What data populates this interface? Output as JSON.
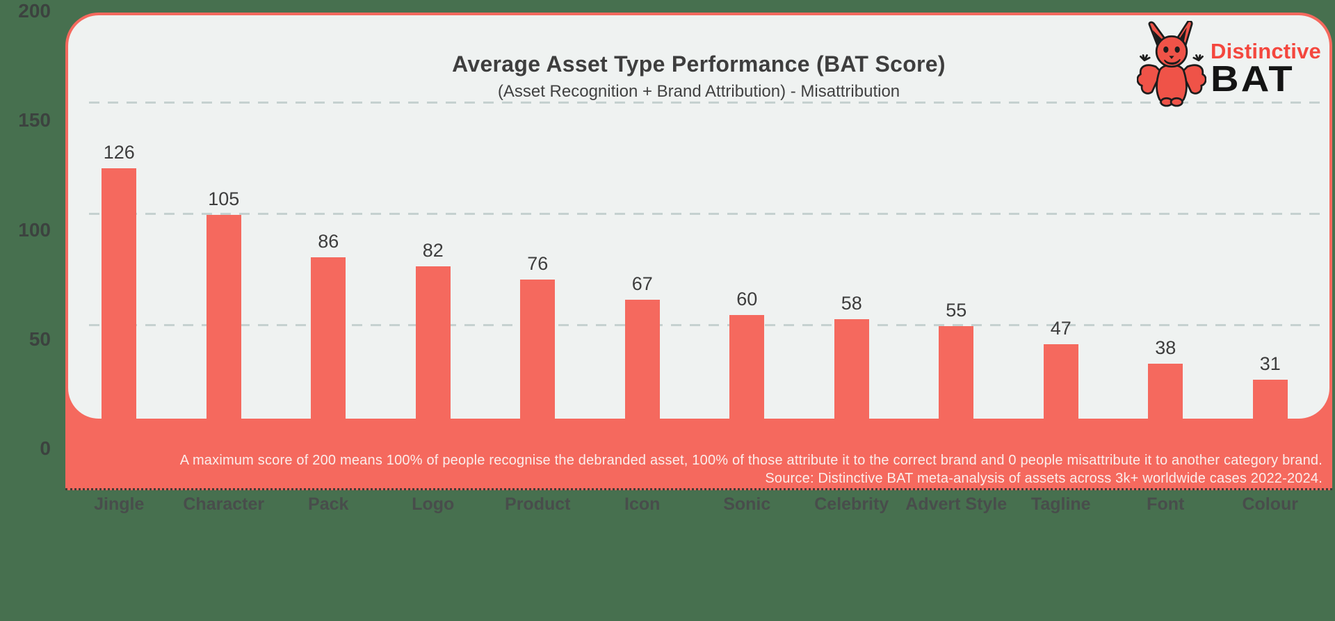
{
  "header": {
    "title": "Average Asset Type Performance (BAT Score)",
    "subtitle": "(Asset Recognition + Brand Attribution) - Misattribution"
  },
  "logo": {
    "brand_top": "Distinctive",
    "brand_bottom": "BAT",
    "mascot": "red-bat-mascot-icon"
  },
  "footer": {
    "line1": "A maximum score of 200 means 100% of people recognise the debranded asset, 100% of those attribute it to the correct brand and 0 people misattribute it to another category brand.",
    "line2": "Source: Distinctive BAT meta-analysis of assets across 3k+ worldwide cases 2022-2024."
  },
  "chart_data": {
    "type": "bar",
    "title": "Average Asset Type Performance (BAT Score)",
    "subtitle": "(Asset Recognition + Brand Attribution) - Misattribution",
    "categories": [
      "Jingle",
      "Character",
      "Pack",
      "Logo",
      "Product",
      "Icon",
      "Sonic",
      "Celebrity",
      "Advert Style",
      "Tagline",
      "Font",
      "Colour"
    ],
    "values": [
      126,
      105,
      86,
      82,
      76,
      67,
      60,
      58,
      55,
      47,
      38,
      31
    ],
    "xlabel": "",
    "ylabel": "",
    "ylim": [
      0,
      200
    ],
    "yticks": [
      0,
      50,
      100,
      150,
      200
    ],
    "grid": "horizontal dashed lines at 50, 100, 150",
    "legend": "none",
    "bar_color": "#F5695E"
  },
  "colors": {
    "background_green": "#47704F",
    "salmon": "#F5695E",
    "panel_white": "#EFF2F1",
    "gridline": "#C5D1D0",
    "text_dark": "#3E3E3E",
    "axis_text": "#3C423F",
    "footer_text": "#FBEDEB",
    "logo_red": "#F4473E",
    "logo_black": "#141414"
  }
}
